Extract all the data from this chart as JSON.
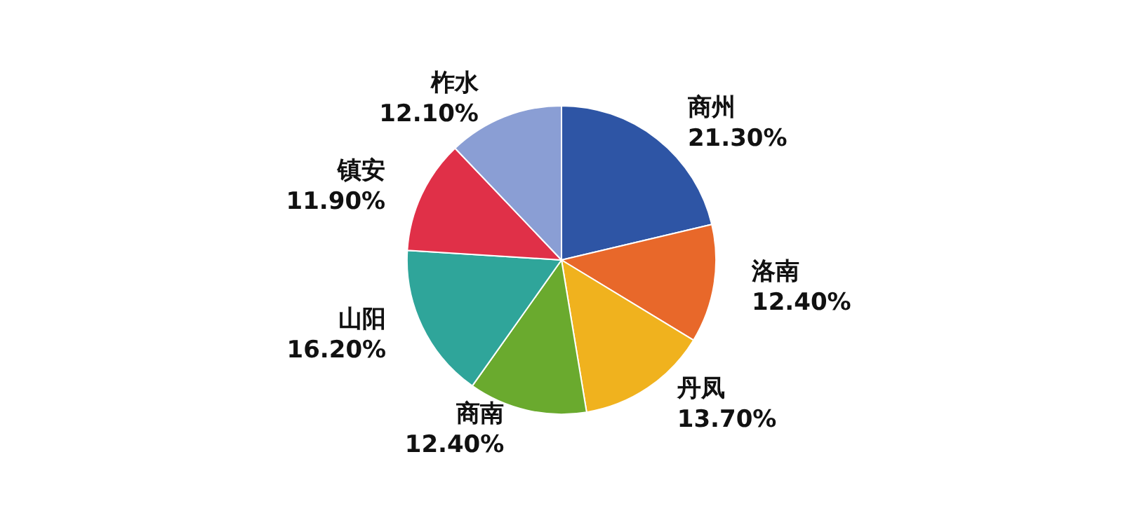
{
  "chart_data": {
    "type": "pie",
    "categories": [
      "商州",
      "洛南",
      "丹凤",
      "商南",
      "山阳",
      "镇安",
      "柞水"
    ],
    "values": [
      21.3,
      12.4,
      13.7,
      12.4,
      16.2,
      11.9,
      12.1
    ],
    "colors": [
      "#2e55a5",
      "#e8682a",
      "#f0b21e",
      "#6aaa2e",
      "#2fa59a",
      "#e03048",
      "#8a9ed4"
    ],
    "value_labels": [
      "21.30%",
      "12.40%",
      "13.70%",
      "12.40%",
      "16.20%",
      "11.90%",
      "12.10%"
    ],
    "legend": false
  }
}
